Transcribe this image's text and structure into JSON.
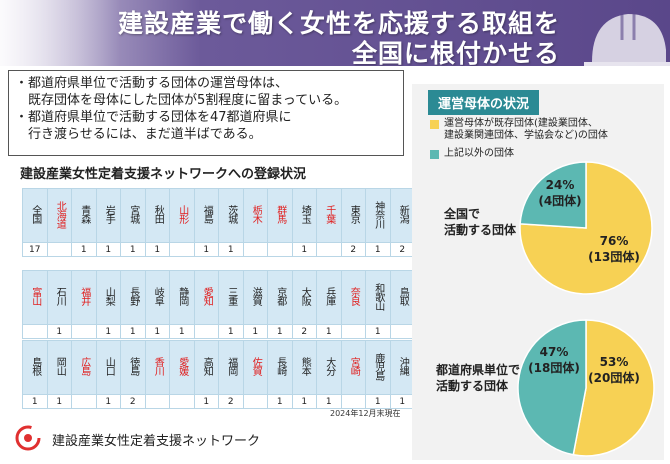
{
  "header": {
    "title_line1": "建設産業で働く女性を応援する取組を",
    "title_line2": "全国に根付かせる"
  },
  "summary": {
    "lines": [
      "・都道府県単位で活動する団体の運営母体は、",
      "　既存団体を母体にした団体が5割程度に留まっている。",
      "・都道府県単位で活動する団体を47都道府県に",
      "　行き渡らせるには、まだ道半ばである。"
    ]
  },
  "network_title": "建設産業女性定着支援ネットワークへの登録状況",
  "prefecture_rows": [
    {
      "names": [
        "全国",
        "北海道",
        "青森",
        "岩手",
        "宮城",
        "秋田",
        "山形",
        "福島",
        "茨城",
        "栃木",
        "群馬",
        "埼玉",
        "千葉",
        "東京",
        "神奈川",
        "新潟"
      ],
      "red": [
        false,
        true,
        false,
        false,
        false,
        false,
        true,
        false,
        false,
        true,
        true,
        false,
        true,
        false,
        false,
        false
      ],
      "counts": [
        "17",
        "",
        "1",
        "1",
        "1",
        "1",
        "",
        "1",
        "1",
        "",
        "",
        "1",
        "",
        "2",
        "1",
        "2"
      ]
    },
    {
      "names": [
        "富山",
        "石川",
        "福井",
        "山梨",
        "長野",
        "岐阜",
        "静岡",
        "愛知",
        "三重",
        "滋賀",
        "京都",
        "大阪",
        "兵庫",
        "奈良",
        "和歌山",
        "鳥取"
      ],
      "red": [
        true,
        false,
        true,
        false,
        false,
        false,
        false,
        true,
        false,
        false,
        false,
        false,
        false,
        true,
        false,
        false
      ],
      "counts": [
        "",
        "1",
        "",
        "1",
        "1",
        "1",
        "1",
        "",
        "1",
        "1",
        "1",
        "2",
        "1",
        "",
        "1",
        ""
      ]
    },
    {
      "names": [
        "島根",
        "岡山",
        "広島",
        "山口",
        "徳島",
        "香川",
        "愛媛",
        "高知",
        "福岡",
        "佐賀",
        "長崎",
        "熊本",
        "大分",
        "宮崎",
        "鹿児島",
        "沖縄"
      ],
      "red": [
        false,
        false,
        true,
        false,
        false,
        true,
        true,
        false,
        false,
        true,
        false,
        false,
        false,
        true,
        false,
        false
      ],
      "counts": [
        "1",
        "1",
        "",
        "1",
        "2",
        "",
        "",
        "1",
        "2",
        "",
        "1",
        "1",
        "1",
        "",
        "1",
        "1"
      ]
    }
  ],
  "as_of": "2024年12月末現在",
  "org_name": "建設産業女性定着支援ネットワーク",
  "right_panel": {
    "title": "運営母体の状況",
    "legend": [
      {
        "lines": [
          "運営母体が既存団体(建設業団体、",
          "建設業関連団体、学協会など)の団体"
        ],
        "color": "#f7d154"
      },
      {
        "lines": [
          "上記以外の団体"
        ],
        "color": "#5cb8b2"
      }
    ],
    "charts": [
      {
        "label_lines": [
          "全国で",
          "活動する団体"
        ],
        "slices": [
          {
            "name": "",
            "pct_label": "76%",
            "count_label": "(13団体)",
            "value": 76,
            "color": "#f7d154"
          },
          {
            "name": "",
            "pct_label": "24%",
            "count_label": "(4団体)",
            "value": 24,
            "color": "#5cb8b2"
          }
        ]
      },
      {
        "label_lines": [
          "都道府県単位で",
          "活動する団体"
        ],
        "slices": [
          {
            "name": "",
            "pct_label": "53%",
            "count_label": "(20団体)",
            "value": 53,
            "color": "#f7d154"
          },
          {
            "name": "",
            "pct_label": "47%",
            "count_label": "(18団体)",
            "value": 47,
            "color": "#5cb8b2"
          }
        ]
      }
    ]
  }
}
